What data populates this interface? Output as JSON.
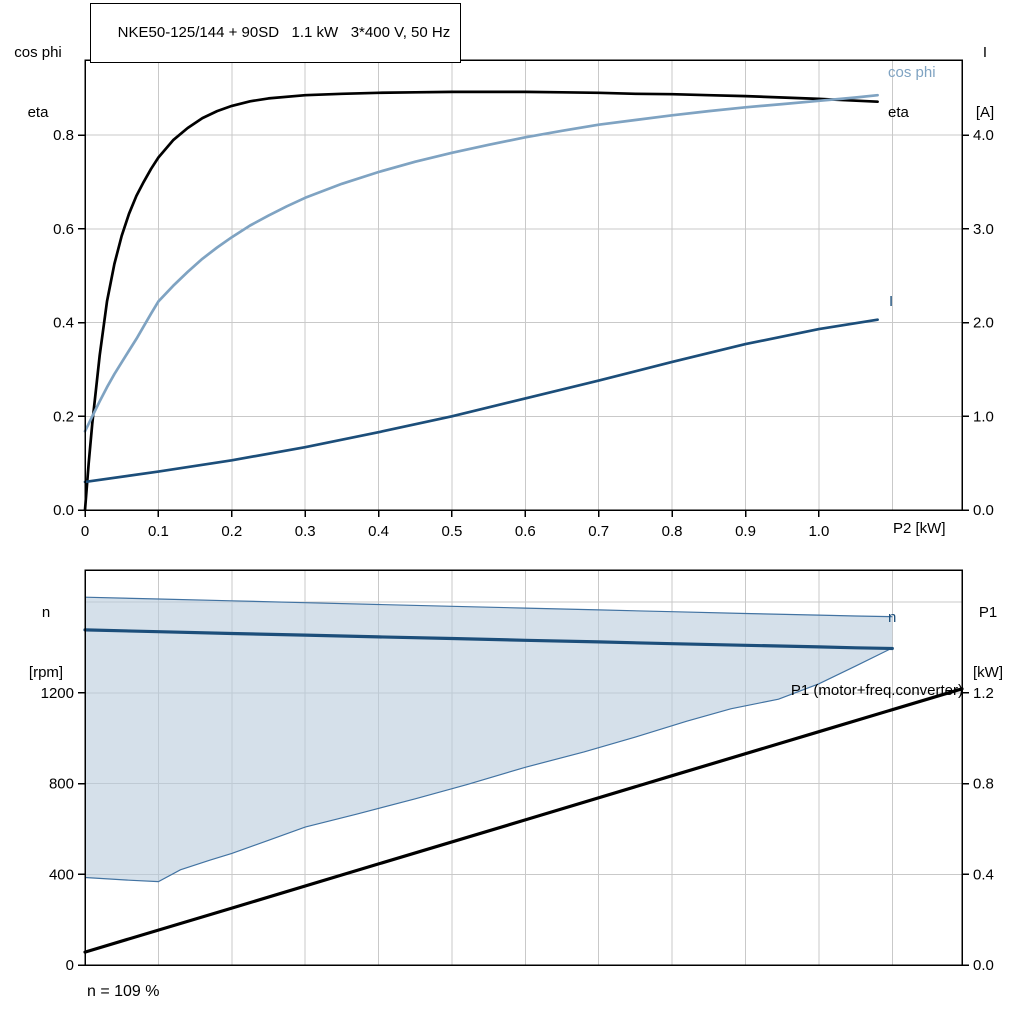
{
  "header": {
    "title": "NKE50-125/144 + 90SD   1.1 kW   3*400 V, 50 Hz"
  },
  "labels": {
    "cos_phi": "cos phi",
    "eta": "eta",
    "current": "I",
    "n": "n",
    "p1": "P1 (motor+freq.converter)"
  },
  "annotation": {
    "speed_note": "n = 109 %"
  },
  "colors": {
    "eta_line": "#000000",
    "cos_phi_line": "#7fa3c2",
    "current_line": "#1c4e7a",
    "speed_line": "#1c4e7a",
    "p1_line": "#000000",
    "region_fill": "#b9cbdc",
    "region_edge": "#4273a2",
    "grid": "#c9c9c9",
    "axis": "#000000"
  },
  "chart_data": [
    {
      "type": "line",
      "name": "motor-performance-chart",
      "title": "NKE50-125/144 + 90SD   1.1 kW   3*400 V, 50 Hz",
      "x_axis": {
        "label": "P2 [kW]",
        "min": 0,
        "max": 1.195,
        "ticks": [
          0,
          0.1,
          0.2,
          0.3,
          0.4,
          0.5,
          0.6,
          0.7,
          0.8,
          0.9,
          1.0
        ],
        "tick_labels": [
          "0",
          "0.1",
          "0.2",
          "0.3",
          "0.4",
          "0.5",
          "0.6",
          "0.7",
          "0.8",
          "0.9",
          "1.0"
        ],
        "grid_ticks": [
          0.1,
          0.2,
          0.3,
          0.4,
          0.5,
          0.6,
          0.7,
          0.8,
          0.9,
          1.0,
          1.1
        ]
      },
      "y_left": {
        "label_lines": [
          "cos phi",
          "eta"
        ],
        "min": 0,
        "max": 0.96,
        "ticks": [
          0,
          0.2,
          0.4,
          0.6,
          0.8
        ],
        "tick_labels": [
          "0.0",
          "0.2",
          "0.4",
          "0.6",
          "0.8"
        ],
        "grid_ticks": [
          0.2,
          0.4,
          0.6,
          0.8
        ]
      },
      "y_right": {
        "label_lines": [
          "I",
          "[A]"
        ],
        "min": 0,
        "max": 4.8,
        "ticks": [
          0,
          1,
          2,
          3,
          4
        ],
        "tick_labels": [
          "0.0",
          "1.0",
          "2.0",
          "3.0",
          "4.0"
        ]
      },
      "series": [
        {
          "id": "eta",
          "color_key": "eta_line",
          "axis": "left",
          "width": 2.7,
          "points": [
            [
              0,
              0
            ],
            [
              0.005,
              0.1
            ],
            [
              0.01,
              0.185
            ],
            [
              0.02,
              0.33
            ],
            [
              0.03,
              0.445
            ],
            [
              0.04,
              0.525
            ],
            [
              0.05,
              0.585
            ],
            [
              0.06,
              0.632
            ],
            [
              0.07,
              0.67
            ],
            [
              0.08,
              0.7
            ],
            [
              0.09,
              0.728
            ],
            [
              0.1,
              0.752
            ],
            [
              0.12,
              0.789
            ],
            [
              0.14,
              0.815
            ],
            [
              0.16,
              0.836
            ],
            [
              0.18,
              0.851
            ],
            [
              0.2,
              0.862
            ],
            [
              0.225,
              0.872
            ],
            [
              0.25,
              0.878
            ],
            [
              0.3,
              0.885
            ],
            [
              0.35,
              0.888
            ],
            [
              0.4,
              0.89
            ],
            [
              0.45,
              0.891
            ],
            [
              0.5,
              0.892
            ],
            [
              0.55,
              0.892
            ],
            [
              0.6,
              0.892
            ],
            [
              0.65,
              0.891
            ],
            [
              0.7,
              0.89
            ],
            [
              0.75,
              0.888
            ],
            [
              0.8,
              0.887
            ],
            [
              0.85,
              0.885
            ],
            [
              0.9,
              0.883
            ],
            [
              0.95,
              0.88
            ],
            [
              1.0,
              0.877
            ],
            [
              1.04,
              0.874
            ],
            [
              1.08,
              0.871
            ]
          ]
        },
        {
          "id": "cos-phi",
          "color_key": "cos_phi_line",
          "axis": "left",
          "width": 2.7,
          "points": [
            [
              0,
              0.168
            ],
            [
              0.01,
              0.2
            ],
            [
              0.02,
              0.232
            ],
            [
              0.03,
              0.262
            ],
            [
              0.04,
              0.29
            ],
            [
              0.05,
              0.315
            ],
            [
              0.06,
              0.34
            ],
            [
              0.07,
              0.365
            ],
            [
              0.08,
              0.392
            ],
            [
              0.09,
              0.419
            ],
            [
              0.1,
              0.445
            ],
            [
              0.12,
              0.478
            ],
            [
              0.14,
              0.508
            ],
            [
              0.16,
              0.536
            ],
            [
              0.18,
              0.56
            ],
            [
              0.2,
              0.582
            ],
            [
              0.225,
              0.607
            ],
            [
              0.25,
              0.628
            ],
            [
              0.275,
              0.648
            ],
            [
              0.3,
              0.666
            ],
            [
              0.35,
              0.696
            ],
            [
              0.4,
              0.721
            ],
            [
              0.45,
              0.743
            ],
            [
              0.5,
              0.762
            ],
            [
              0.55,
              0.779
            ],
            [
              0.6,
              0.795
            ],
            [
              0.65,
              0.809
            ],
            [
              0.7,
              0.822
            ],
            [
              0.75,
              0.832
            ],
            [
              0.8,
              0.842
            ],
            [
              0.85,
              0.851
            ],
            [
              0.9,
              0.859
            ],
            [
              0.95,
              0.866
            ],
            [
              1.0,
              0.873
            ],
            [
              1.05,
              0.88
            ],
            [
              1.08,
              0.885
            ]
          ]
        },
        {
          "id": "current",
          "color_key": "current_line",
          "axis": "right",
          "width": 2.7,
          "points": [
            [
              0,
              0.3
            ],
            [
              0.1,
              0.41
            ],
            [
              0.2,
              0.53
            ],
            [
              0.3,
              0.67
            ],
            [
              0.4,
              0.83
            ],
            [
              0.5,
              1.0
            ],
            [
              0.6,
              1.19
            ],
            [
              0.7,
              1.38
            ],
            [
              0.8,
              1.58
            ],
            [
              0.9,
              1.77
            ],
            [
              1.0,
              1.93
            ],
            [
              1.08,
              2.03
            ]
          ]
        }
      ]
    },
    {
      "type": "line",
      "name": "speed-power-chart",
      "x_axis": {
        "label": "",
        "min": 0,
        "max": 1.195,
        "ticks": [],
        "tick_labels": [],
        "grid_ticks": [
          0.1,
          0.2,
          0.3,
          0.4,
          0.5,
          0.6,
          0.7,
          0.8,
          0.9,
          1.0,
          1.1
        ]
      },
      "y_left": {
        "label_lines": [
          "n",
          "[rpm]"
        ],
        "min": 0,
        "max": 1742,
        "ticks": [
          0,
          400,
          800,
          1200
        ],
        "tick_labels": [
          "0",
          "400",
          "800",
          "1200"
        ],
        "grid_ticks": [
          400,
          800,
          1200,
          1600
        ]
      },
      "y_right": {
        "label_lines": [
          "P1",
          "[kW]"
        ],
        "min": 0,
        "max": 1.742,
        "ticks": [
          0,
          0.4,
          0.8,
          1.2
        ],
        "tick_labels": [
          "0.0",
          "0.4",
          "0.8",
          "1.2"
        ]
      },
      "region": {
        "name": "speed-operating-range",
        "lower": [
          [
            0,
            386
          ],
          [
            0.06,
            374
          ],
          [
            0.1,
            368
          ],
          [
            0.13,
            420
          ],
          [
            0.17,
            462
          ],
          [
            0.2,
            492
          ],
          [
            0.25,
            550
          ],
          [
            0.3,
            608
          ],
          [
            0.37,
            665
          ],
          [
            0.45,
            733
          ],
          [
            0.52,
            795
          ],
          [
            0.6,
            872
          ],
          [
            0.68,
            940
          ],
          [
            0.75,
            1005
          ],
          [
            0.82,
            1075
          ],
          [
            0.88,
            1130
          ],
          [
            0.945,
            1172
          ],
          [
            1.0,
            1240
          ],
          [
            1.05,
            1318
          ],
          [
            1.1,
            1398
          ]
        ],
        "upper": [
          [
            0,
            1622
          ],
          [
            0.1,
            1614
          ],
          [
            0.2,
            1606
          ],
          [
            0.3,
            1598
          ],
          [
            0.4,
            1590
          ],
          [
            0.5,
            1582
          ],
          [
            0.6,
            1574
          ],
          [
            0.7,
            1566
          ],
          [
            0.8,
            1558
          ],
          [
            0.9,
            1550
          ],
          [
            1.0,
            1543
          ],
          [
            1.05,
            1539
          ],
          [
            1.1,
            1536
          ]
        ]
      },
      "series": [
        {
          "id": "n",
          "color_key": "speed_line",
          "axis": "left",
          "width": 3.2,
          "points": [
            [
              0,
              1478
            ],
            [
              0.1,
              1470
            ],
            [
              0.2,
              1462
            ],
            [
              0.3,
              1455
            ],
            [
              0.4,
              1447
            ],
            [
              0.5,
              1440
            ],
            [
              0.6,
              1432
            ],
            [
              0.7,
              1425
            ],
            [
              0.8,
              1417
            ],
            [
              0.9,
              1410
            ],
            [
              1.0,
              1403
            ],
            [
              1.05,
              1399
            ],
            [
              1.1,
              1396
            ]
          ]
        },
        {
          "id": "p1",
          "color_key": "p1_line",
          "axis": "right",
          "width": 3.2,
          "points": [
            [
              0,
              0.057
            ],
            [
              0.2,
              0.251
            ],
            [
              0.4,
              0.446
            ],
            [
              0.6,
              0.64
            ],
            [
              0.8,
              0.835
            ],
            [
              1.0,
              1.029
            ],
            [
              1.195,
              1.218
            ]
          ]
        }
      ]
    }
  ]
}
